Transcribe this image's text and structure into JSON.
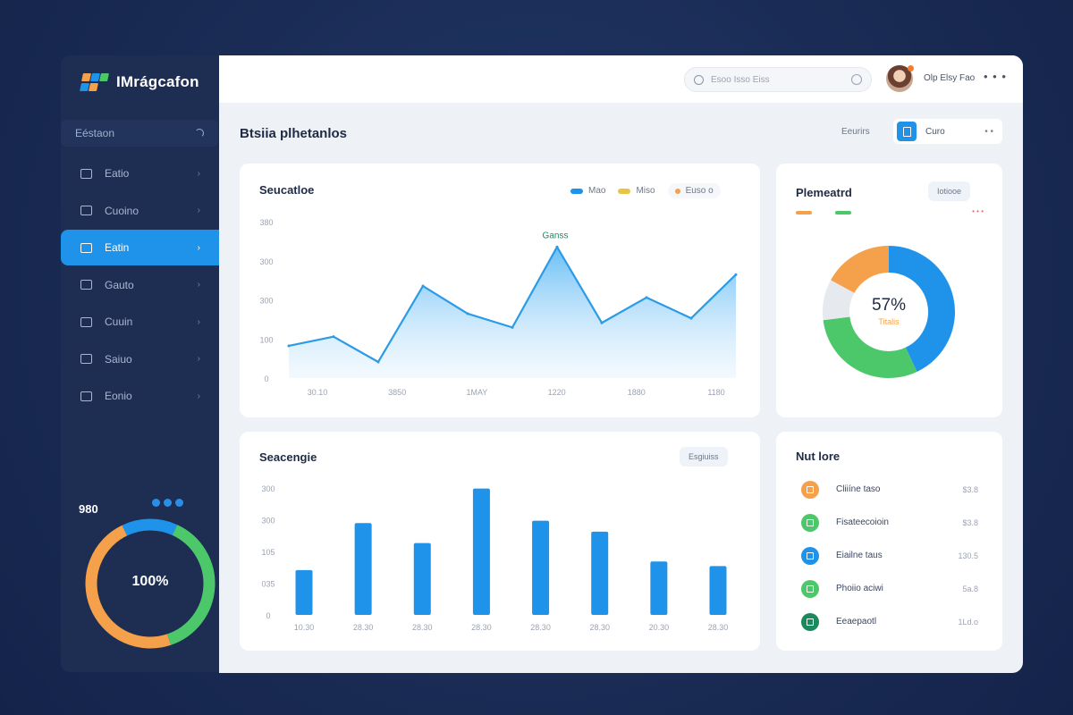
{
  "app": {
    "name": "IMrágcafon"
  },
  "colors": {
    "accent": "#1f93ea",
    "green": "#4cc86b",
    "orange": "#f5a04a",
    "yellow": "#e8c547",
    "gray": "#e6e9ee",
    "teal": "#1a8a5e",
    "line": "#2c9be6"
  },
  "sidebar": {
    "search_label": "Eéstaon",
    "items": [
      {
        "label": "Eatio",
        "icon": "grid-icon"
      },
      {
        "label": "Cuoino",
        "icon": "chart-icon"
      },
      {
        "label": "Eatin",
        "icon": "dashboard-icon",
        "active": true
      },
      {
        "label": "Gauto",
        "icon": "bag-icon"
      },
      {
        "label": "Cuuin",
        "icon": "document-icon"
      },
      {
        "label": "Saiuo",
        "icon": "chat-icon"
      },
      {
        "label": "Eonio",
        "icon": "folder-icon"
      }
    ],
    "stat_label": "980",
    "ring_label": "100%",
    "ring_values": [
      14,
      38,
      48
    ]
  },
  "topbar": {
    "search_placeholder": "Esoo Isso Eiss",
    "username": "Olp Elsy Fao",
    "more_label": "• • •"
  },
  "page": {
    "title": "Btsiia plhetanlos",
    "filter_label": "Eeurirs",
    "filter_value": "Curo",
    "filter_more": "• •"
  },
  "line_card": {
    "title": "Seucatloe",
    "legend": [
      {
        "label": "Mao",
        "color": "#1f93ea"
      },
      {
        "label": "Miso",
        "color": "#e8c547"
      },
      {
        "label": "Euso o",
        "color": "#f5a04a"
      }
    ],
    "annotation": "Ganss",
    "chart_data": {
      "type": "area",
      "yticks": [
        "0",
        "100",
        "300",
        "300",
        "380"
      ],
      "xlabels": [
        "30.10",
        "3850",
        "1MAY",
        "1220",
        "1880",
        "1180"
      ],
      "values": [
        70,
        90,
        35,
        200,
        140,
        110,
        285,
        120,
        175,
        130,
        225
      ],
      "ylim": [
        0,
        340
      ]
    }
  },
  "donut_card": {
    "title": "Plemeatrd",
    "button_label": "Iotiooe",
    "legend_note": "• • •",
    "center_value": "57%",
    "center_label": "Titalis",
    "chart_data": {
      "type": "pie",
      "values": [
        43,
        30,
        10,
        17
      ]
    }
  },
  "bar_card": {
    "title": "Seacengie",
    "button_label": "Esgiuiss",
    "chart_data": {
      "type": "bar",
      "yticks": [
        "0",
        "035",
        "105",
        "300",
        "300"
      ],
      "categories": [
        "10.30",
        "28.30",
        "28.30",
        "28.30",
        "28.30",
        "28.30",
        "20.30",
        "28.30"
      ],
      "values": [
        78,
        160,
        125,
        220,
        164,
        145,
        93,
        85
      ],
      "ylim": [
        0,
        260
      ]
    }
  },
  "activity_card": {
    "title": "Nut lore",
    "items": [
      {
        "label": "Cliiíne taso",
        "value": "$3.8",
        "color": "#f5a04a"
      },
      {
        "label": "Fisateecoioin",
        "value": "$3.8",
        "color": "#4cc86b"
      },
      {
        "label": "Eiailne taus",
        "value": "130.5",
        "color": "#1f93ea"
      },
      {
        "label": "Phoiio aciwi",
        "value": "5a.8",
        "color": "#4cc86b"
      },
      {
        "label": "Eeaepaotl",
        "value": "1Ld.o",
        "color": "#1a8a5e"
      }
    ]
  }
}
